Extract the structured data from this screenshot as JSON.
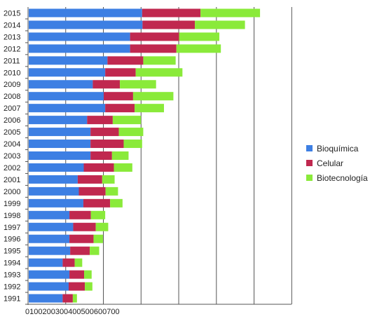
{
  "chart_data": {
    "type": "bar",
    "orientation": "horizontal",
    "stacked": true,
    "categories": [
      "2015",
      "2014",
      "2013",
      "2012",
      "2011",
      "2010",
      "2009",
      "2008",
      "2007",
      "2006",
      "2005",
      "2004",
      "2003",
      "2002",
      "2001",
      "2000",
      "1999",
      "1998",
      "1997",
      "1996",
      "1995",
      "1994",
      "1993",
      "1992",
      "1991"
    ],
    "series": [
      {
        "name": "Bioquímica",
        "color": "#3d7fe3",
        "values": [
          301,
          302,
          269,
          269,
          209,
          203,
          170,
          199,
          203,
          155,
          164,
          164,
          164,
          146,
          130,
          133,
          145,
          108,
          118,
          108,
          110,
          90,
          108,
          106,
          90
        ]
      },
      {
        "name": "Celular",
        "color": "#c0284f",
        "values": [
          155,
          139,
          130,
          123,
          95,
          81,
          72,
          78,
          78,
          68,
          75,
          88,
          57,
          80,
          65,
          71,
          71,
          57,
          60,
          64,
          52,
          32,
          39,
          43,
          27
        ]
      },
      {
        "name": "Biotecnología",
        "color": "#8aea3a",
        "values": [
          158,
          133,
          107,
          118,
          86,
          124,
          96,
          107,
          78,
          75,
          65,
          49,
          44,
          49,
          33,
          33,
          33,
          38,
          33,
          25,
          25,
          20,
          20,
          20,
          11
        ]
      }
    ],
    "xlim": [
      0,
      700
    ],
    "xticks": [
      0,
      100,
      200,
      300,
      400,
      500,
      600,
      700
    ],
    "xtick_text": "0100200300400500600700",
    "grid": "vertical",
    "legend_position": "right"
  }
}
